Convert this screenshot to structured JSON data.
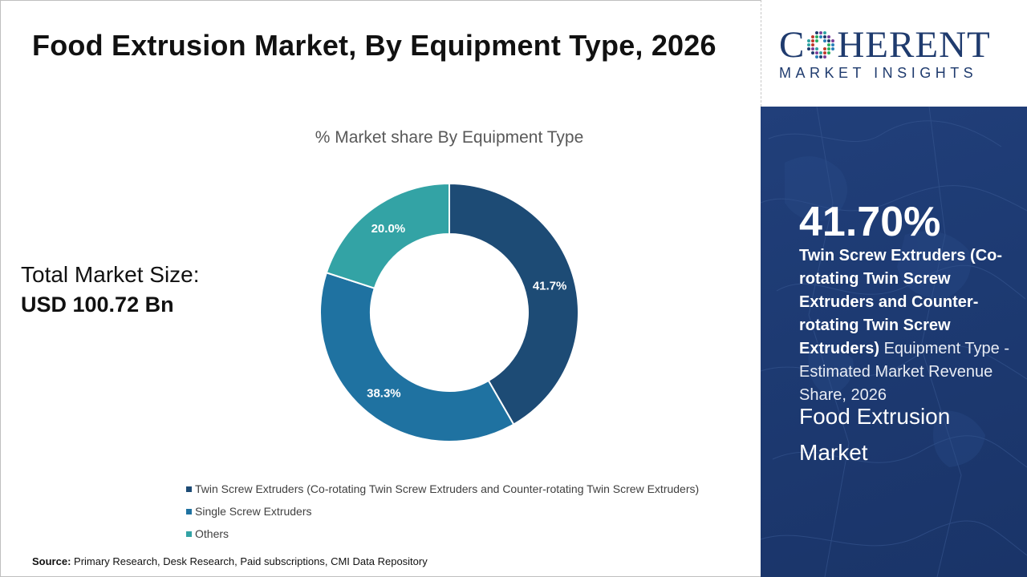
{
  "title": "Food Extrusion Market, By Equipment Type, 2026",
  "total_market": {
    "label": "Total Market Size:",
    "value": "USD 100.72 Bn"
  },
  "source": {
    "label": "Source:",
    "text": " Primary Research, Desk Research, Paid subscriptions, CMI Data Repository"
  },
  "logo": {
    "word_left": "C",
    "word_right": "HERENT",
    "sub": "MARKET INSIGHTS"
  },
  "highlight": {
    "percent": "41.70%",
    "segment_bold": "Twin Screw Extruders (Co-rotating Twin Screw Extruders and Counter-rotating Twin Screw Extruders)",
    "segment_rest": " Equipment Type - Estimated Market Revenue Share, 2026",
    "market_name": "Food Extrusion Market"
  },
  "colors": {
    "twin": "#1f4e79",
    "single": "#2274a5",
    "others": "#2fa3a3",
    "panel": "#1f3d77"
  },
  "chart_data": {
    "type": "pie",
    "variant": "donut",
    "title": "% Market share By Equipment Type",
    "categories": [
      "Twin Screw Extruders (Co-rotating Twin Screw Extruders and Counter-rotating Twin Screw Extruders)",
      "Single Screw Extruders",
      "Others"
    ],
    "values": [
      41.7,
      38.3,
      20.0
    ],
    "labels": [
      "41.7%",
      "38.3%",
      "20.0%"
    ],
    "colors": [
      "#1d4b75",
      "#1f72a1",
      "#33a3a5"
    ],
    "legend_position": "bottom"
  }
}
